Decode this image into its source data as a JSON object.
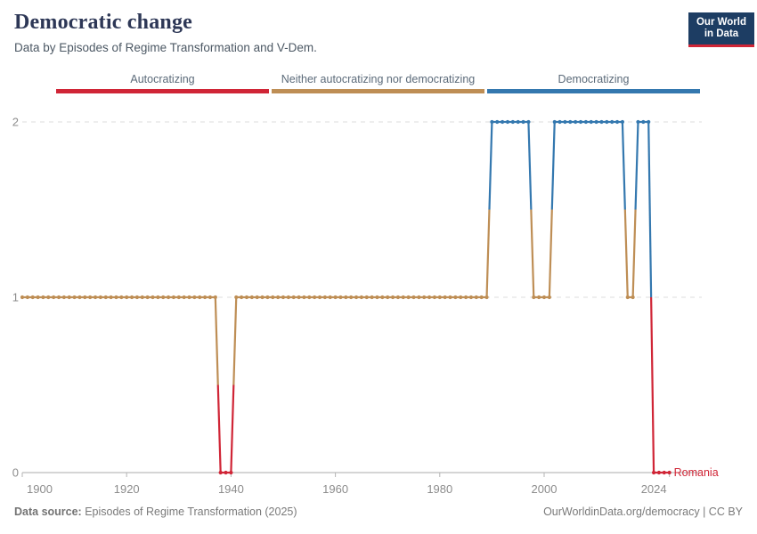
{
  "header": {
    "title": "Democratic change",
    "subtitle": "Data by Episodes of Regime Transformation and V-Dem."
  },
  "logo": {
    "line1": "Our World",
    "line2": "in Data"
  },
  "legend": {
    "items": [
      {
        "label": "Autocratizing",
        "color": "#D02536"
      },
      {
        "label": "Neither autocratizing nor democratizing",
        "color": "#BE8E55"
      },
      {
        "label": "Democratizing",
        "color": "#3478AF"
      }
    ]
  },
  "chart_data": {
    "type": "line",
    "title": "Democratic change",
    "entity": "Romania",
    "x": {
      "ticks": [
        1900,
        1920,
        1940,
        1960,
        1980,
        2000,
        2024
      ],
      "min": 1900,
      "max": 2024
    },
    "y": {
      "ticks": [
        0,
        1,
        2
      ],
      "min": 0,
      "max": 2,
      "gridlines": "dashed"
    },
    "categories": {
      "0": "Autocratizing",
      "1": "Neither autocratizing nor democratizing",
      "2": "Democratizing"
    },
    "colors": {
      "0": "#D02536",
      "1": "#BE8E55",
      "2": "#3478AF"
    },
    "segments": [
      {
        "start": 1900,
        "end": 1937,
        "value": 1
      },
      {
        "start": 1938,
        "end": 1940,
        "value": 0
      },
      {
        "start": 1941,
        "end": 1989,
        "value": 1
      },
      {
        "start": 1990,
        "end": 1997,
        "value": 2
      },
      {
        "start": 1998,
        "end": 2001,
        "value": 1
      },
      {
        "start": 2002,
        "end": 2015,
        "value": 2
      },
      {
        "start": 2016,
        "end": 2017,
        "value": 1
      },
      {
        "start": 2018,
        "end": 2020,
        "value": 2
      },
      {
        "start": 2021,
        "end": 2024,
        "value": 0
      }
    ]
  },
  "footer": {
    "source_label": "Data source:",
    "source_value": " Episodes of Regime Transformation (2025)",
    "credit": "OurWorldinData.org/democracy | CC BY"
  }
}
